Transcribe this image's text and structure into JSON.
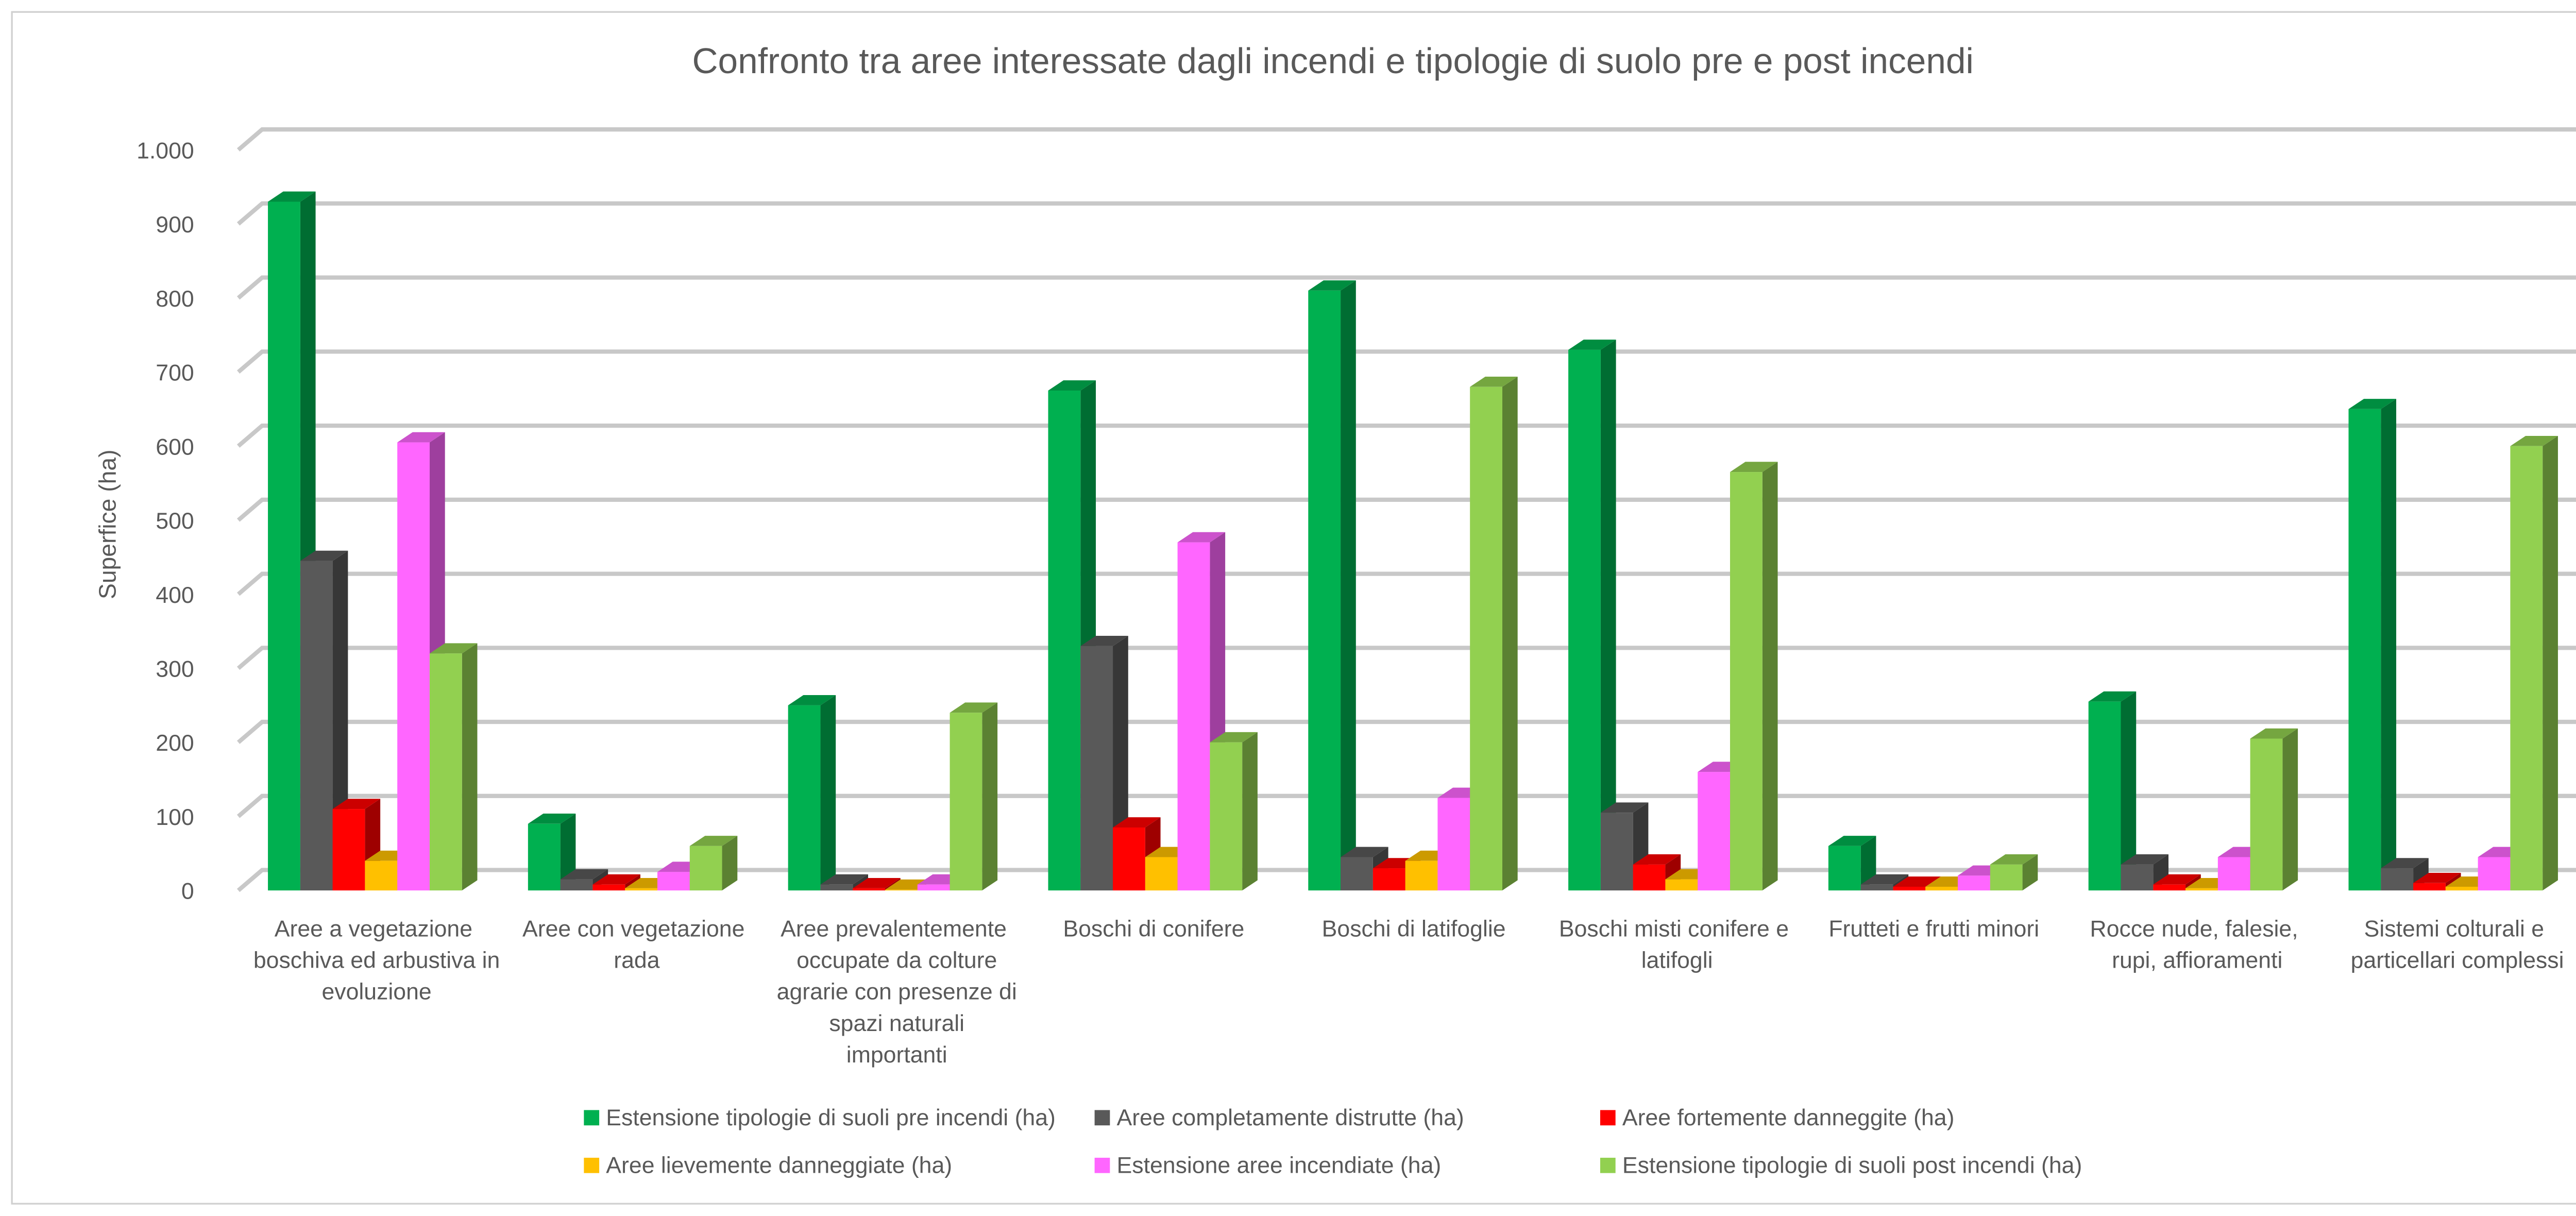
{
  "chart_data": {
    "type": "bar3d",
    "title": "Confronto tra aree interessate dagli incendi e tipologie di suolo pre e post incendi",
    "y_label": "Superfice (ha)",
    "categories": [
      "Aree a vegetazione boschiva ed arbustiva in evoluzione",
      "Aree con vegetazione rada",
      "Aree prevalentemente occupate da colture agrarie con presenze di spazi naturali importanti",
      "Boschi di conifere",
      "Boschi di latifoglie",
      "Boschi misti conifere e latifogli",
      "Frutteti e frutti minori",
      "Rocce nude, falesie, rupi, affioramenti",
      "Sistemi colturali e particellari complessi"
    ],
    "series": [
      {
        "name": "Estensione tipologie di suoli pre incendi (ha)",
        "color": "#00b050",
        "values": [
          930,
          90,
          250,
          675,
          810,
          730,
          60,
          255,
          650
        ]
      },
      {
        "name": "Aree completamente distrutte (ha)",
        "color": "#595959",
        "values": [
          445,
          15,
          8,
          330,
          45,
          105,
          8,
          35,
          30
        ]
      },
      {
        "name": "Aree fortemente danneggite (ha)",
        "color": "#ff0000",
        "values": [
          110,
          8,
          3,
          85,
          30,
          35,
          5,
          8,
          10
        ]
      },
      {
        "name": "Aree lievemente danneggiate (ha)",
        "color": "#ffc000",
        "values": [
          40,
          3,
          1,
          45,
          40,
          15,
          5,
          3,
          5
        ]
      },
      {
        "name": "Estensione aree incendiate (ha)",
        "color": "#ff66ff",
        "values": [
          605,
          25,
          8,
          470,
          125,
          160,
          20,
          45,
          45
        ]
      },
      {
        "name": "Estensione tipologie di suoli post incendi (ha)",
        "color": "#92d050",
        "values": [
          320,
          60,
          240,
          200,
          680,
          565,
          35,
          205,
          600
        ]
      }
    ],
    "ylim": [
      0,
      1000
    ],
    "yticks": [
      0,
      100,
      200,
      300,
      400,
      500,
      600,
      700,
      800,
      900,
      {
        "value": 1000,
        "label": "1.000"
      }
    ],
    "grid": true,
    "legend": "bottom"
  }
}
